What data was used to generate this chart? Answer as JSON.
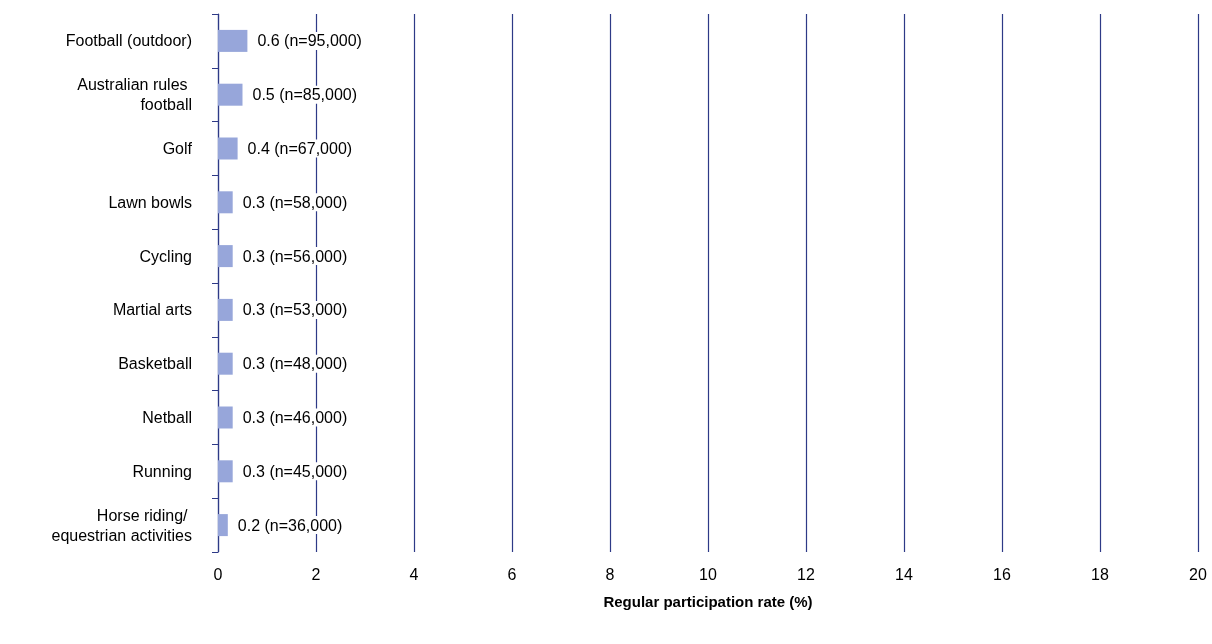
{
  "chart_data": {
    "type": "bar",
    "orientation": "horizontal",
    "xlabel": "Regular participation rate (%)",
    "categories": [
      "Football (outdoor)",
      "Australian rules football",
      "Golf",
      "Lawn bowls",
      "Cycling",
      "Martial arts",
      "Basketball",
      "Netball",
      "Running",
      "Horse riding/ equestrian activities"
    ],
    "values": [
      0.6,
      0.5,
      0.4,
      0.3,
      0.3,
      0.3,
      0.3,
      0.3,
      0.3,
      0.2
    ],
    "value_labels": [
      "0.6 (n=95,000)",
      "0.5 (n=85,000)",
      "0.4 (n=67,000)",
      "0.3 (n=58,000)",
      "0.3 (n=56,000)",
      "0.3 (n=53,000)",
      "0.3 (n=48,000)",
      "0.3 (n=46,000)",
      "0.3 (n=45,000)",
      "0.2 (n=36,000)"
    ],
    "color": "#97a6da",
    "xlim": [
      0,
      20
    ],
    "xticks": [
      0,
      2,
      4,
      6,
      8,
      10,
      12,
      14,
      16,
      18,
      20
    ],
    "grid": "x"
  }
}
